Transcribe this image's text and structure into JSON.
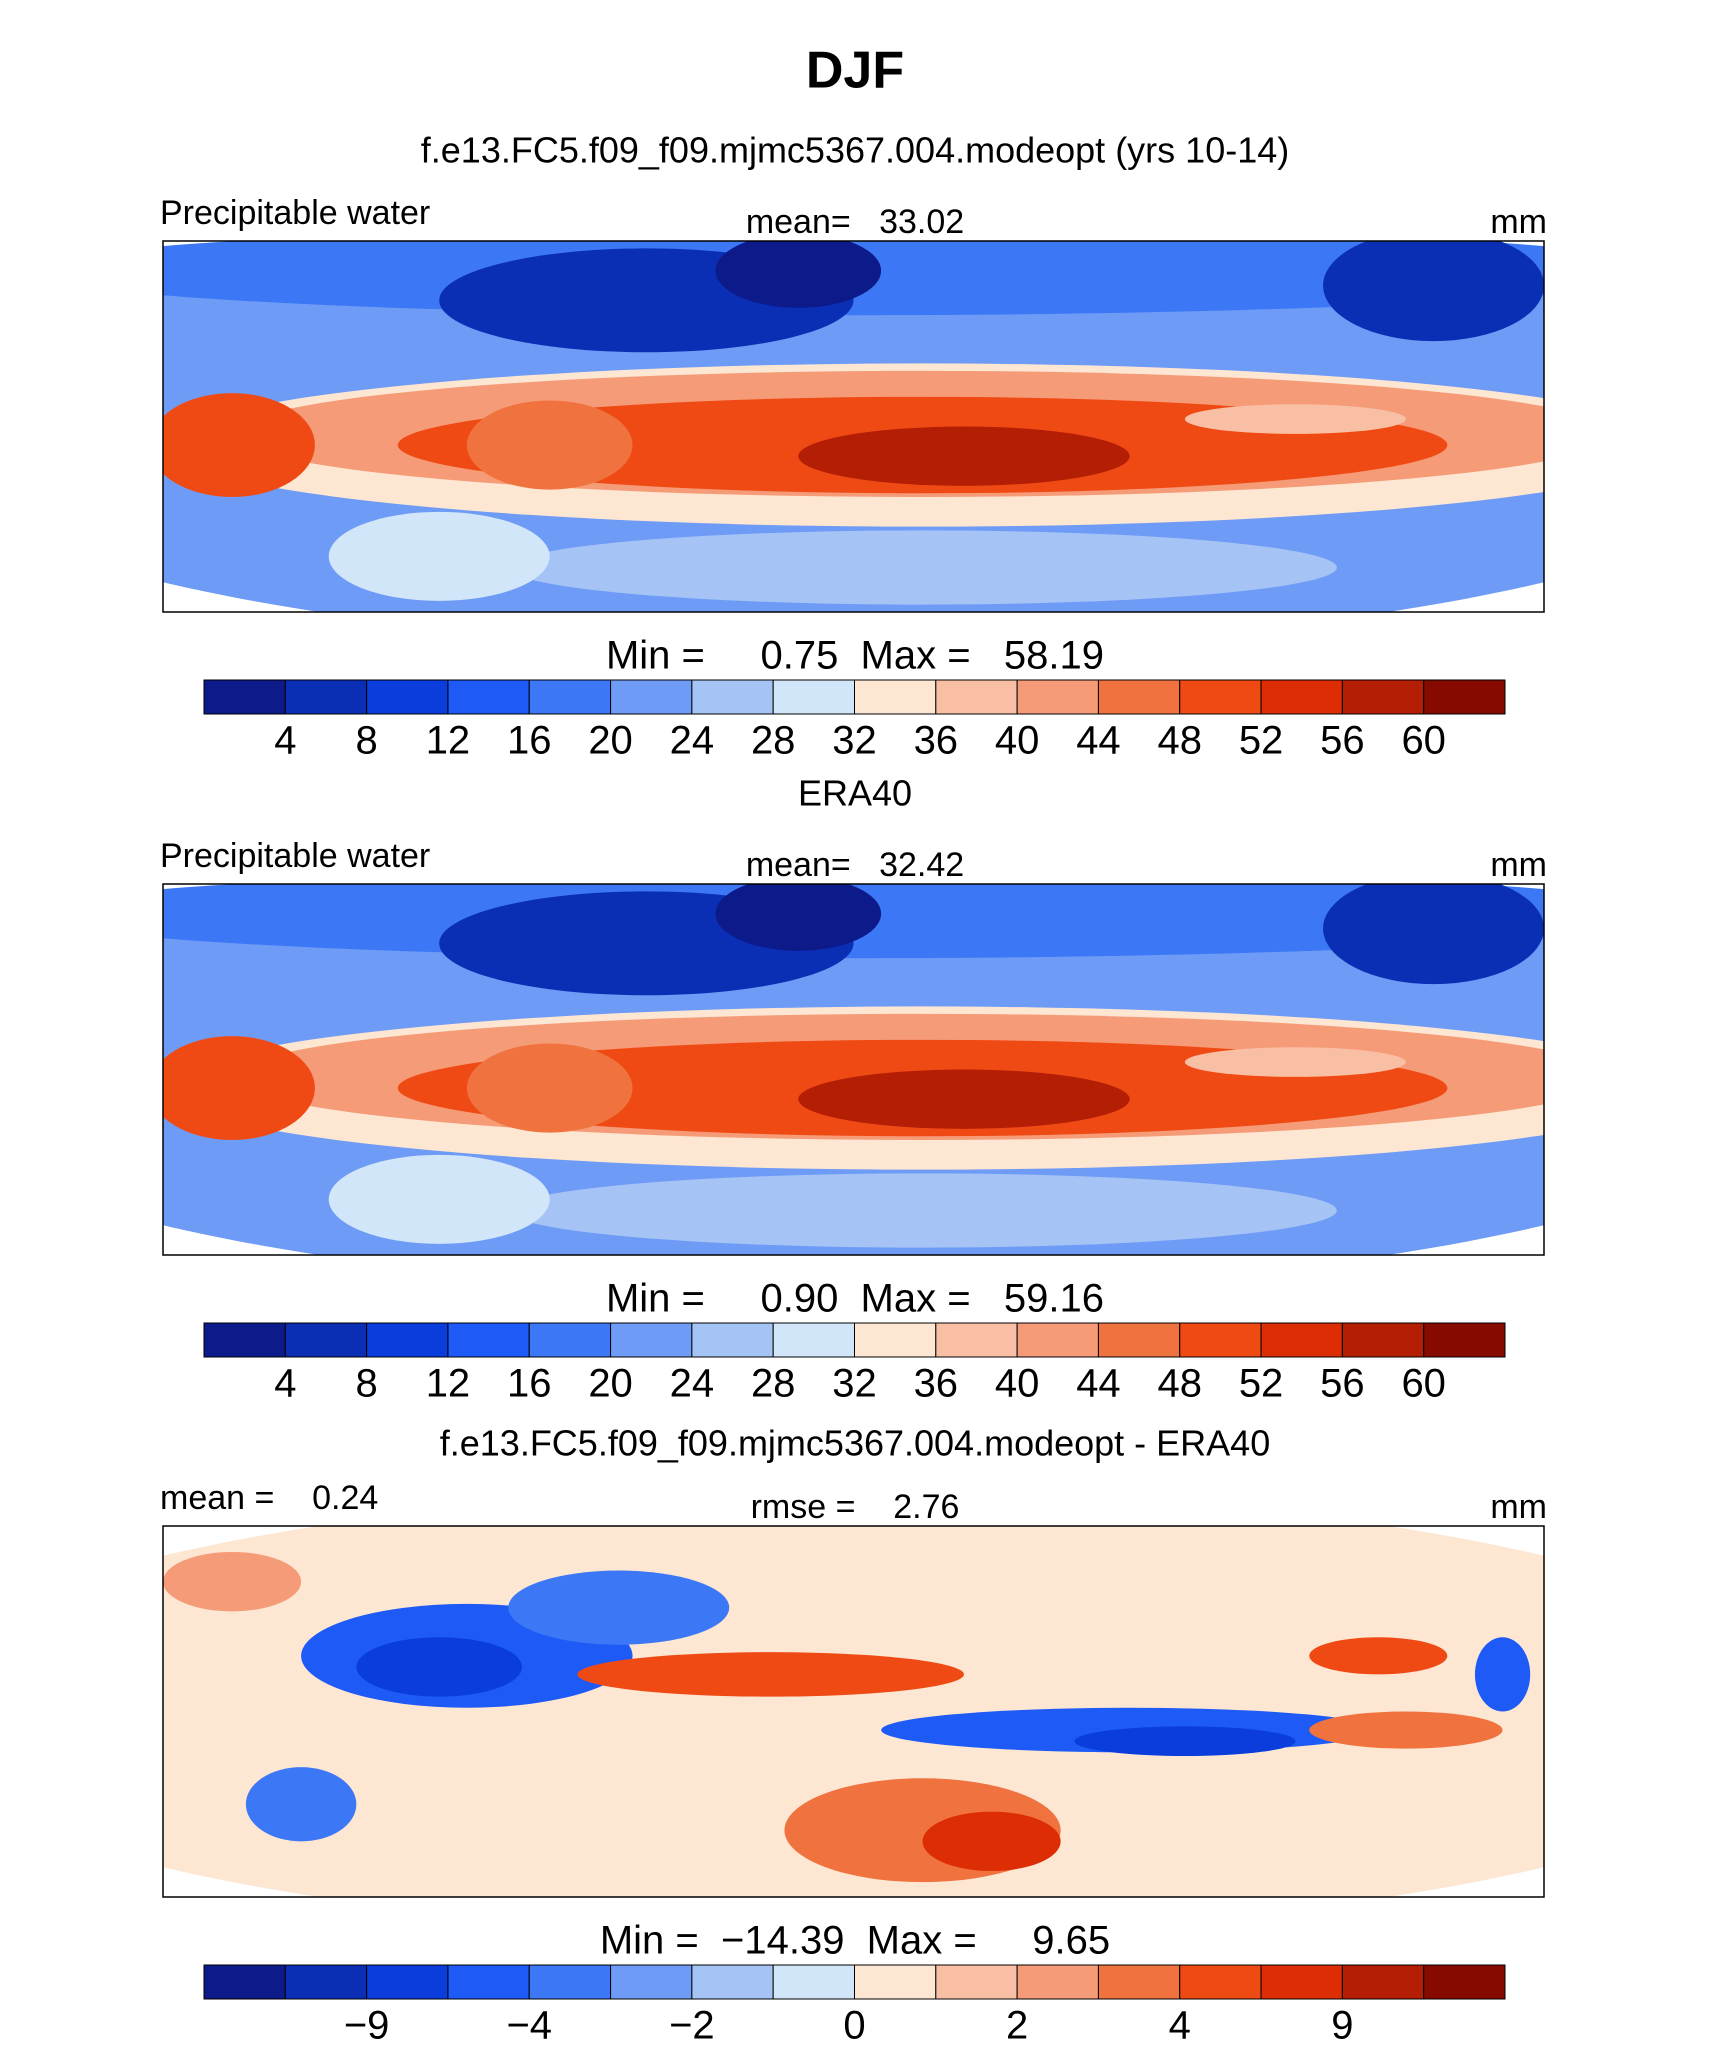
{
  "title": "DJF",
  "palette": [
    "#0c1a8a",
    "#0a2fb4",
    "#0a3ddc",
    "#1e5af5",
    "#3c78f5",
    "#6e9bf5",
    "#a5c3f5",
    "#d2e6fa",
    "#fde6d2",
    "#f9bfa5",
    "#f59b78",
    "#f0733f",
    "#f04a14",
    "#dc2d05",
    "#b41e05",
    "#870a00"
  ],
  "panels": [
    {
      "subtitle": "f.e13.FC5.f09_f09.mjmc5367.004.modeopt (yrs 10-14)",
      "left": "Precipitable water",
      "center": "mean=   33.02",
      "right": "mm",
      "stats": "Min =     0.75  Max =   58.19",
      "colorbar": [
        "4",
        "8",
        "12",
        "16",
        "20",
        "24",
        "28",
        "32",
        "36",
        "40",
        "44",
        "48",
        "52",
        "56",
        "60"
      ]
    },
    {
      "subtitle": "ERA40",
      "left": "Precipitable water",
      "center": "mean=   32.42",
      "right": "mm",
      "stats": "Min =     0.90  Max =   59.16",
      "colorbar": [
        "4",
        "8",
        "12",
        "16",
        "20",
        "24",
        "28",
        "32",
        "36",
        "40",
        "44",
        "48",
        "52",
        "56",
        "60"
      ]
    },
    {
      "subtitle": "f.e13.FC5.f09_f09.mjmc5367.004.modeopt - ERA40",
      "left": "mean =    0.24",
      "center": "rmse =    2.76",
      "right": "mm",
      "stats": "Min =  −14.39  Max =     9.65",
      "colorbar": [
        "−9",
        "−4",
        "−2",
        "0",
        "2",
        "4",
        "9"
      ]
    }
  ]
}
